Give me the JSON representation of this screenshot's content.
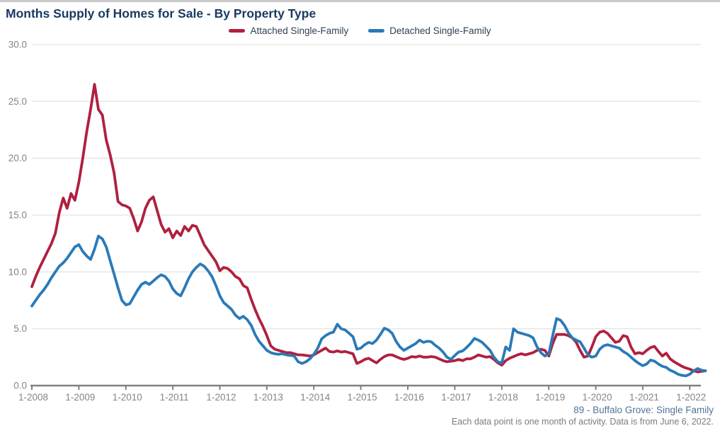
{
  "title": "Months Supply of Homes for Sale - By Property Type",
  "legend": {
    "items": [
      {
        "label": "Attached Single-Family",
        "color": "#b0203f"
      },
      {
        "label": "Detached Single-Family",
        "color": "#2a7ab8"
      }
    ]
  },
  "footer": {
    "market_label": "89 - Buffalo Grove: Single Family",
    "note": "Each data point is one month of activity. Data is from June 6, 2022."
  },
  "chart_data": {
    "type": "line",
    "title": "Months Supply of Homes for Sale - By Property Type",
    "xlabel": "",
    "ylabel": "",
    "ylim": [
      0,
      30
    ],
    "y_tick_step": 5,
    "grid": true,
    "legend_position": "top",
    "x_start": "1-2008",
    "x_end": "5-2022",
    "points_per_year": 12,
    "x_tick_labels": [
      "1-2008",
      "1-2009",
      "1-2010",
      "1-2011",
      "1-2012",
      "1-2013",
      "1-2014",
      "1-2015",
      "1-2016",
      "1-2017",
      "1-2018",
      "1-2019",
      "1-2020",
      "1-2021",
      "1-2022"
    ],
    "y_tick_labels": [
      "0.0",
      "5.0",
      "10.0",
      "15.0",
      "20.0",
      "25.0",
      "30.0"
    ],
    "series": [
      {
        "name": "Attached Single-Family",
        "color": "#b0203f",
        "values": [
          8.7,
          9.6,
          10.4,
          11.1,
          11.8,
          12.5,
          13.4,
          15.2,
          16.5,
          15.6,
          16.9,
          16.3,
          17.9,
          20.0,
          22.3,
          24.3,
          26.5,
          24.3,
          23.8,
          21.6,
          20.3,
          18.7,
          16.2,
          15.9,
          15.8,
          15.6,
          14.7,
          13.6,
          14.4,
          15.6,
          16.3,
          16.6,
          15.4,
          14.2,
          13.5,
          13.8,
          13.0,
          13.6,
          13.2,
          14.0,
          13.6,
          14.1,
          14.0,
          13.2,
          12.4,
          11.9,
          11.4,
          10.9,
          10.1,
          10.4,
          10.3,
          10.0,
          9.6,
          9.4,
          8.8,
          8.6,
          7.6,
          6.7,
          5.9,
          5.2,
          4.4,
          3.5,
          3.2,
          3.1,
          3.0,
          2.9,
          2.9,
          2.8,
          2.7,
          2.7,
          2.65,
          2.6,
          2.7,
          2.9,
          3.1,
          3.3,
          3.0,
          2.95,
          3.05,
          2.95,
          3.0,
          2.9,
          2.8,
          1.95,
          2.1,
          2.3,
          2.4,
          2.2,
          2.0,
          2.3,
          2.55,
          2.7,
          2.7,
          2.55,
          2.4,
          2.3,
          2.4,
          2.55,
          2.5,
          2.6,
          2.5,
          2.5,
          2.55,
          2.5,
          2.35,
          2.2,
          2.1,
          2.15,
          2.2,
          2.3,
          2.2,
          2.35,
          2.35,
          2.5,
          2.7,
          2.6,
          2.5,
          2.55,
          2.3,
          2.0,
          1.8,
          2.2,
          2.4,
          2.55,
          2.7,
          2.8,
          2.7,
          2.8,
          2.9,
          3.1,
          3.2,
          3.1,
          2.6,
          3.7,
          4.5,
          4.5,
          4.5,
          4.4,
          4.2,
          3.8,
          3.1,
          2.5,
          2.6,
          3.4,
          4.3,
          4.7,
          4.8,
          4.6,
          4.2,
          3.8,
          3.9,
          4.4,
          4.3,
          3.4,
          2.8,
          2.9,
          2.8,
          3.1,
          3.35,
          3.45,
          3.0,
          2.6,
          2.85,
          2.35,
          2.1,
          1.9,
          1.7,
          1.55,
          1.45,
          1.3,
          1.2,
          1.25,
          1.3
        ]
      },
      {
        "name": "Detached Single-Family",
        "color": "#2a7ab8",
        "values": [
          7.0,
          7.5,
          8.0,
          8.4,
          8.9,
          9.5,
          10.0,
          10.5,
          10.8,
          11.2,
          11.7,
          12.2,
          12.4,
          11.8,
          11.4,
          11.1,
          12.0,
          13.15,
          12.9,
          12.2,
          11.0,
          9.8,
          8.6,
          7.5,
          7.1,
          7.2,
          7.8,
          8.4,
          8.9,
          9.1,
          8.9,
          9.2,
          9.5,
          9.75,
          9.6,
          9.2,
          8.5,
          8.1,
          7.9,
          8.6,
          9.4,
          10.0,
          10.4,
          10.7,
          10.5,
          10.1,
          9.6,
          8.8,
          7.9,
          7.3,
          7.0,
          6.7,
          6.2,
          5.9,
          6.1,
          5.8,
          5.3,
          4.5,
          3.9,
          3.5,
          3.1,
          2.9,
          2.8,
          2.75,
          2.8,
          2.7,
          2.65,
          2.6,
          2.1,
          1.95,
          2.1,
          2.35,
          2.75,
          3.3,
          4.1,
          4.4,
          4.6,
          4.7,
          5.4,
          5.0,
          4.9,
          4.6,
          4.3,
          3.2,
          3.3,
          3.6,
          3.8,
          3.7,
          4.0,
          4.5,
          5.05,
          4.9,
          4.6,
          3.9,
          3.4,
          3.1,
          3.3,
          3.5,
          3.7,
          4.0,
          3.8,
          3.9,
          3.85,
          3.55,
          3.3,
          2.95,
          2.5,
          2.3,
          2.65,
          2.95,
          3.05,
          3.35,
          3.7,
          4.15,
          4.0,
          3.8,
          3.45,
          3.1,
          2.5,
          2.1,
          2.0,
          3.4,
          3.1,
          5.0,
          4.7,
          4.6,
          4.5,
          4.4,
          4.2,
          3.4,
          2.9,
          2.6,
          2.8,
          4.4,
          5.9,
          5.75,
          5.3,
          4.65,
          4.2,
          4.0,
          3.85,
          3.3,
          2.7,
          2.5,
          2.6,
          3.2,
          3.5,
          3.6,
          3.5,
          3.4,
          3.3,
          3.0,
          2.8,
          2.5,
          2.2,
          1.95,
          1.75,
          1.9,
          2.25,
          2.15,
          1.9,
          1.7,
          1.6,
          1.35,
          1.2,
          1.0,
          0.9,
          0.85,
          1.0,
          1.3,
          1.5,
          1.35,
          1.3
        ]
      }
    ],
    "colors": {
      "gridline": "#dbdbdb",
      "axis": "#808080",
      "tick_text": "#858585"
    }
  }
}
